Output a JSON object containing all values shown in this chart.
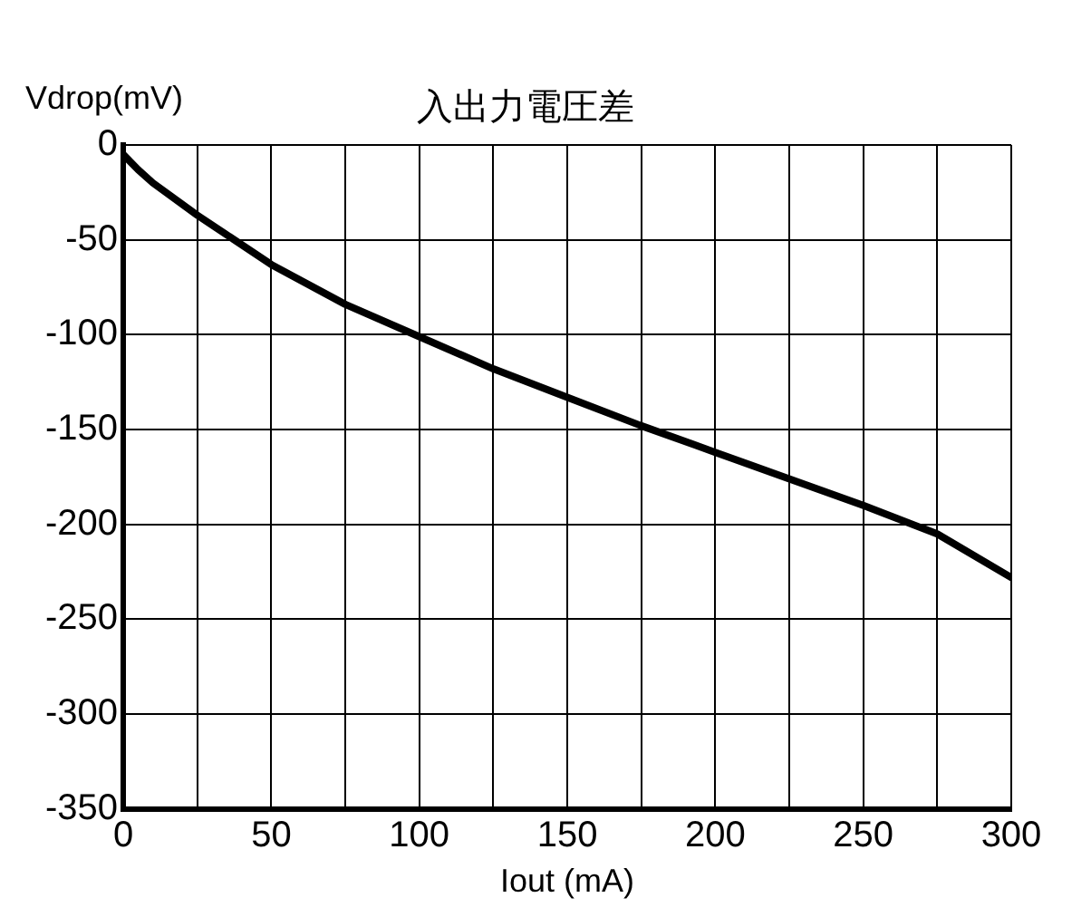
{
  "chart_data": {
    "type": "line",
    "title": "入出力電圧差",
    "xlabel": "Iout (mA)",
    "ylabel": "Vdrop(mV)",
    "x": [
      0,
      5,
      10,
      25,
      50,
      75,
      100,
      125,
      150,
      175,
      200,
      225,
      250,
      275,
      300
    ],
    "series": [
      {
        "color": "#000000",
        "values": [
          -5,
          -13,
          -20,
          -37,
          -63,
          -84,
          -101,
          -118,
          -133,
          -148,
          -162,
          -176,
          -190,
          -205,
          -228
        ]
      }
    ],
    "xlim": [
      0,
      300
    ],
    "xticks": [
      0,
      {
        "value": 25,
        "label": null
      },
      50,
      {
        "value": 75,
        "label": null
      },
      100,
      {
        "value": 125,
        "label": null
      },
      150,
      {
        "value": 175,
        "label": null
      },
      200,
      {
        "value": 225,
        "label": null
      },
      250,
      {
        "value": 275,
        "label": null
      },
      300
    ],
    "ylim": [
      -350,
      0
    ],
    "yticks": [
      -350,
      -300,
      -250,
      -200,
      -150,
      -100,
      -50,
      0
    ],
    "grid": true,
    "legend": false,
    "marker": "none",
    "line_style": "solid"
  }
}
